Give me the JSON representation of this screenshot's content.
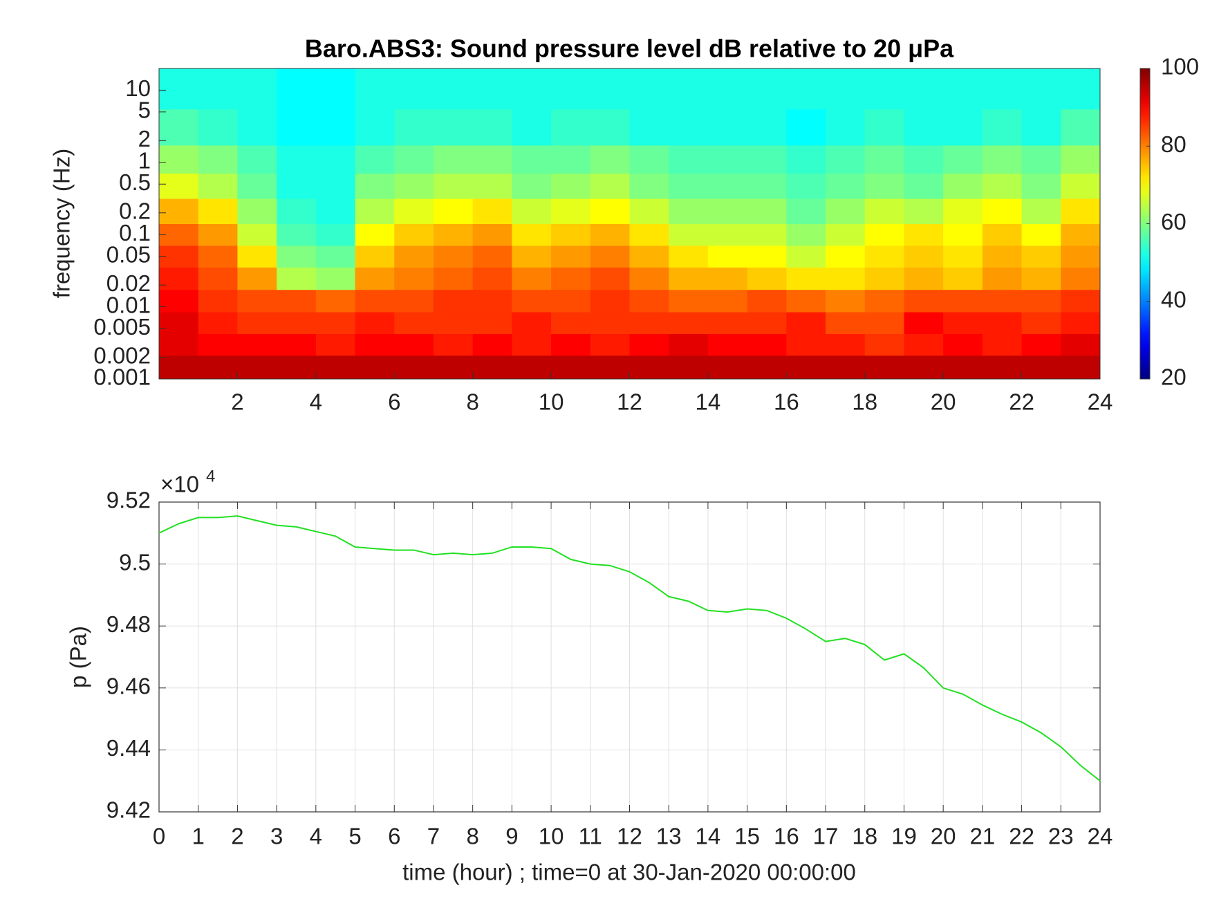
{
  "chart_data": [
    {
      "type": "heatmap",
      "title": "Baro.ABS3: Sound pressure level dB relative to 20 μPa",
      "ylabel": "frequency (Hz)",
      "colormap": "jet",
      "log_y": true,
      "x": [
        0.5,
        1.5,
        2.5,
        3.5,
        4.5,
        5.5,
        6.5,
        7.5,
        8.5,
        9.5,
        10.5,
        11.5,
        12.5,
        13.5,
        14.5,
        15.5,
        16.5,
        17.5,
        18.5,
        19.5,
        20.5,
        21.5,
        22.5,
        23.5
      ],
      "frequencies": [
        0.0015,
        0.003,
        0.006,
        0.012,
        0.025,
        0.05,
        0.1,
        0.2,
        0.5,
        1,
        3,
        10
      ],
      "z": [
        [
          95,
          95,
          95,
          95,
          95,
          95,
          95,
          95,
          95,
          95,
          95,
          95,
          95,
          95,
          95,
          95,
          95,
          95,
          95,
          95,
          95,
          95,
          95,
          95
        ],
        [
          92,
          90,
          90,
          90,
          88,
          90,
          90,
          88,
          90,
          88,
          90,
          88,
          90,
          92,
          90,
          90,
          88,
          88,
          86,
          88,
          90,
          88,
          90,
          92
        ],
        [
          92,
          88,
          86,
          86,
          86,
          88,
          86,
          86,
          86,
          88,
          86,
          86,
          86,
          86,
          86,
          86,
          88,
          84,
          84,
          90,
          88,
          88,
          86,
          88
        ],
        [
          90,
          86,
          84,
          84,
          82,
          84,
          84,
          86,
          86,
          84,
          84,
          86,
          84,
          82,
          82,
          84,
          82,
          80,
          82,
          84,
          84,
          84,
          84,
          86
        ],
        [
          88,
          84,
          78,
          64,
          62,
          78,
          80,
          82,
          84,
          80,
          82,
          84,
          80,
          76,
          76,
          74,
          72,
          72,
          74,
          76,
          74,
          78,
          76,
          80
        ],
        [
          86,
          82,
          72,
          60,
          58,
          74,
          78,
          80,
          82,
          76,
          78,
          80,
          76,
          72,
          70,
          70,
          66,
          70,
          72,
          74,
          72,
          76,
          74,
          78
        ],
        [
          82,
          78,
          66,
          56,
          54,
          70,
          74,
          76,
          78,
          72,
          74,
          76,
          72,
          66,
          66,
          66,
          62,
          66,
          70,
          72,
          70,
          74,
          70,
          76
        ],
        [
          76,
          72,
          62,
          54,
          52,
          64,
          68,
          70,
          72,
          66,
          68,
          70,
          66,
          62,
          62,
          62,
          58,
          62,
          66,
          64,
          68,
          70,
          64,
          72
        ],
        [
          68,
          64,
          58,
          52,
          52,
          60,
          62,
          64,
          64,
          60,
          62,
          64,
          60,
          58,
          58,
          58,
          56,
          58,
          60,
          58,
          62,
          64,
          60,
          66
        ],
        [
          62,
          60,
          56,
          52,
          52,
          56,
          58,
          60,
          60,
          58,
          58,
          60,
          58,
          56,
          56,
          56,
          54,
          56,
          58,
          56,
          58,
          60,
          58,
          62
        ],
        [
          56,
          54,
          52,
          50,
          50,
          52,
          54,
          54,
          54,
          52,
          54,
          54,
          52,
          52,
          52,
          52,
          50,
          52,
          54,
          52,
          52,
          54,
          52,
          56
        ],
        [
          52,
          52,
          52,
          50,
          50,
          52,
          52,
          52,
          52,
          52,
          52,
          52,
          52,
          52,
          52,
          52,
          52,
          52,
          52,
          52,
          52,
          52,
          52,
          52
        ]
      ],
      "xlim": [
        0,
        24
      ],
      "xticks": [
        2,
        4,
        6,
        8,
        10,
        12,
        14,
        16,
        18,
        20,
        22,
        24
      ],
      "ylim": [
        0.001,
        20
      ],
      "yticks": [
        0.001,
        0.002,
        0.005,
        0.01,
        0.02,
        0.05,
        0.1,
        0.2,
        0.5,
        1,
        2,
        5,
        10
      ],
      "clim": [
        20,
        100
      ],
      "cticks": [
        20,
        40,
        60,
        80,
        100
      ]
    },
    {
      "type": "line",
      "xlabel": "time (hour) ; time=0 at 30-Jan-2020 00:00:00",
      "ylabel": "p (Pa)",
      "y_exponent_base": "×10",
      "y_exponent": "4",
      "grid": true,
      "x": [
        0,
        0.5,
        1,
        1.5,
        2,
        2.5,
        3,
        3.5,
        4,
        4.5,
        5,
        5.5,
        6,
        6.5,
        7,
        7.5,
        8,
        8.5,
        9,
        9.5,
        10,
        10.5,
        11,
        11.5,
        12,
        12.5,
        13,
        13.5,
        14,
        14.5,
        15,
        15.5,
        16,
        16.5,
        17,
        17.5,
        18,
        18.5,
        19,
        19.5,
        20,
        20.5,
        21,
        21.5,
        22,
        22.5,
        23,
        23.5,
        24
      ],
      "series": [
        {
          "color": "#22e022",
          "values": [
            95100,
            95130,
            95150,
            95150,
            95155,
            95140,
            95125,
            95120,
            95105,
            95090,
            95055,
            95050,
            95045,
            95045,
            95030,
            95035,
            95030,
            95035,
            95055,
            95055,
            95050,
            95015,
            95000,
            94995,
            94975,
            94940,
            94895,
            94880,
            94850,
            94845,
            94855,
            94850,
            94825,
            94790,
            94750,
            94760,
            94740,
            94690,
            94710,
            94665,
            94600,
            94580,
            94545,
            94515,
            94490,
            94455,
            94410,
            94350,
            94300
          ]
        }
      ],
      "xlim": [
        0,
        24
      ],
      "xticks": [
        0,
        1,
        2,
        3,
        4,
        5,
        6,
        7,
        8,
        9,
        10,
        11,
        12,
        13,
        14,
        15,
        16,
        17,
        18,
        19,
        20,
        21,
        22,
        23,
        24
      ],
      "ylim": [
        94200,
        95200
      ],
      "yticks": [
        {
          "value": 94200,
          "label": "9.42"
        },
        {
          "value": 94400,
          "label": "9.44"
        },
        {
          "value": 94600,
          "label": "9.46"
        },
        {
          "value": 94800,
          "label": "9.48"
        },
        {
          "value": 95000,
          "label": "9.5"
        },
        {
          "value": 95200,
          "label": "9.52"
        }
      ]
    }
  ]
}
